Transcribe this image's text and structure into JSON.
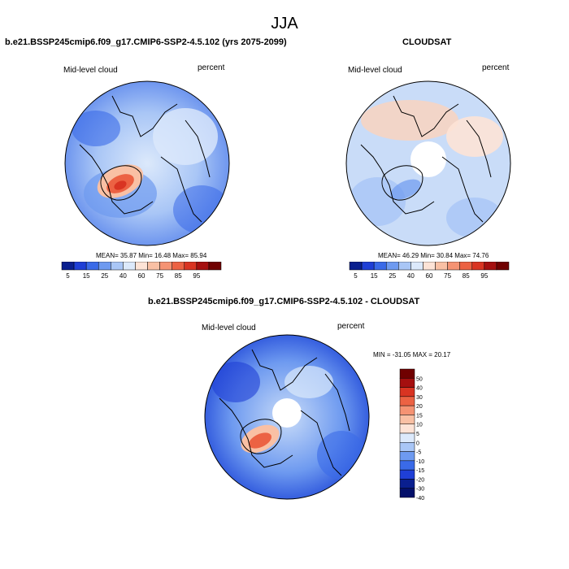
{
  "suptitle": "JJA",
  "panels": [
    {
      "title": "b.e21.BSSP245cmip6.f09_g17.CMIP6-SSP2-4.5.102 (yrs 2075-2099)",
      "left_label": "Mid-level cloud",
      "right_label": "percent",
      "stats": "MEAN=  35.87  Min=  16.48  Max=  85.94",
      "colorbar_labels": [
        "5",
        "15",
        "25",
        "40",
        "60",
        "75",
        "85",
        "95"
      ]
    },
    {
      "title": "CLOUDSAT",
      "left_label": "Mid-level cloud",
      "right_label": "percent",
      "stats": "MEAN=  46.29  Min=  30.84  Max=  74.76",
      "colorbar_labels": [
        "5",
        "15",
        "25",
        "40",
        "60",
        "75",
        "85",
        "95"
      ]
    },
    {
      "title": "b.e21.BSSP245cmip6.f09_g17.CMIP6-SSP2-4.5.102 - CLOUDSAT",
      "left_label": "Mid-level cloud",
      "right_label": "percent",
      "stats": "MIN = -31.05 MAX =  20.17",
      "colorbar_labels": [
        "50",
        "40",
        "30",
        "20",
        "15",
        "10",
        "5",
        "0",
        "-5",
        "-10",
        "-15",
        "-20",
        "-30",
        "-40",
        "-50"
      ]
    }
  ],
  "colors": {
    "field_scale": [
      "#0a1f8f",
      "#1f3fd6",
      "#3a6ae8",
      "#6e9af0",
      "#a9c6f6",
      "#dce9fb",
      "#fde3d6",
      "#f9c0a4",
      "#f59373",
      "#ec6243",
      "#d93422",
      "#a50f0f",
      "#700000"
    ],
    "diff_scale": [
      "#700000",
      "#a50f0f",
      "#d93422",
      "#ec6243",
      "#f59373",
      "#f9c0a4",
      "#fde3d6",
      "#dce9fb",
      "#a9c6f6",
      "#6e9af0",
      "#3a6ae8",
      "#1f3fd6",
      "#0a1f8f",
      "#04106a"
    ],
    "coastline": "#000000"
  }
}
